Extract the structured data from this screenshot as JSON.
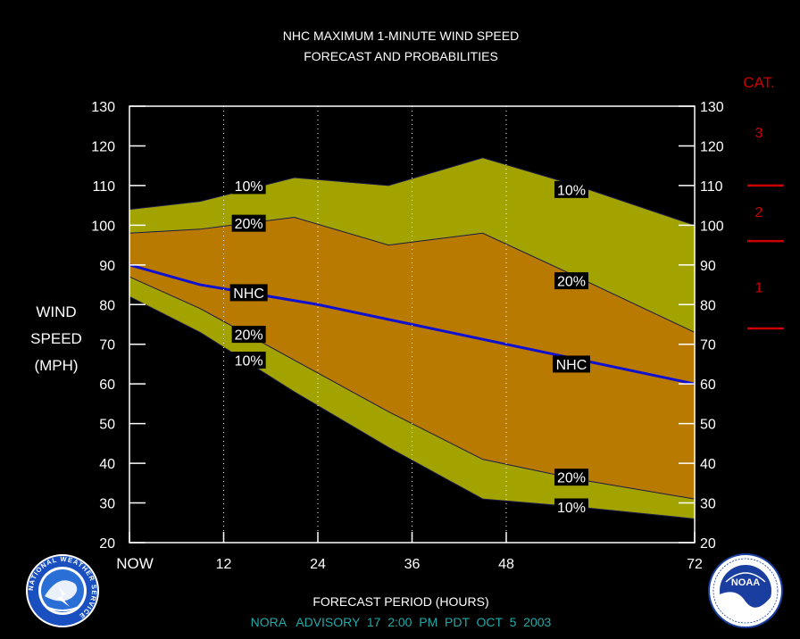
{
  "header": {
    "title_line1": "NHC MAXIMUM 1-MINUTE WIND SPEED",
    "title_line2": "FORECAST AND PROBABILITIES"
  },
  "ylabel": [
    "WIND",
    "SPEED",
    "(MPH)"
  ],
  "xlabel": "FORECAST PERIOD (HOURS)",
  "advisory": "NORA   ADVISORY  17  2:00  PM  PDT  OCT  5  2003",
  "category": {
    "title": "CAT.",
    "labels": [
      {
        "text": "3",
        "mph": 123.5
      },
      {
        "text": "2",
        "mph": 103.5
      },
      {
        "text": "1",
        "mph": 84.5
      }
    ],
    "thresholds_mph": [
      110,
      96,
      74
    ]
  },
  "colors": {
    "background": "#000000",
    "outer_band": "#a3a300",
    "inner_band": "#b87a00",
    "nhc_line": "#1010d0",
    "category": "#cc0000",
    "advisory_text": "#22aaaa",
    "label_box": "#000000"
  },
  "logos": {
    "nws_text": "NATIONAL WEATHER SERVICE",
    "noaa_text": "NOAA"
  },
  "chart_data": {
    "type": "area",
    "x": [
      0,
      12,
      24,
      36,
      48,
      72
    ],
    "x_ticks": [
      {
        "value": 0,
        "label": "NOW"
      },
      {
        "value": 12,
        "label": "12"
      },
      {
        "value": 24,
        "label": "24"
      },
      {
        "value": 36,
        "label": "36"
      },
      {
        "value": 48,
        "label": "48"
      },
      {
        "value": 72,
        "label": "72"
      }
    ],
    "xlim": [
      0,
      72
    ],
    "ylim": [
      20,
      130
    ],
    "y_ticks": [
      20,
      30,
      40,
      50,
      60,
      70,
      80,
      90,
      100,
      110,
      120,
      130
    ],
    "series": [
      {
        "name": "10%",
        "role": "upper_10",
        "points": [
          [
            0,
            104
          ],
          [
            9,
            106
          ],
          [
            21,
            112
          ],
          [
            33,
            110
          ],
          [
            45,
            117
          ],
          [
            57,
            110
          ],
          [
            72,
            100
          ]
        ]
      },
      {
        "name": "20%",
        "role": "upper_20",
        "points": [
          [
            0,
            98
          ],
          [
            9,
            99
          ],
          [
            21,
            102
          ],
          [
            33,
            95
          ],
          [
            45,
            98
          ],
          [
            57,
            87
          ],
          [
            72,
            73
          ]
        ]
      },
      {
        "name": "NHC",
        "role": "nhc",
        "points": [
          [
            0,
            90
          ],
          [
            9,
            85
          ],
          [
            24,
            80
          ],
          [
            36,
            75
          ],
          [
            48,
            70
          ],
          [
            72,
            60
          ]
        ]
      },
      {
        "name": "20%",
        "role": "lower_20",
        "points": [
          [
            0,
            87
          ],
          [
            9,
            79
          ],
          [
            21,
            66
          ],
          [
            33,
            53
          ],
          [
            45,
            41
          ],
          [
            57,
            36
          ],
          [
            72,
            31
          ]
        ]
      },
      {
        "name": "10%",
        "role": "lower_10",
        "points": [
          [
            0,
            82
          ],
          [
            9,
            73
          ],
          [
            21,
            58
          ],
          [
            33,
            44
          ],
          [
            45,
            31
          ],
          [
            57,
            29
          ],
          [
            72,
            26
          ]
        ]
      }
    ],
    "line_labels": [
      {
        "text": "10%",
        "x": 15.2,
        "y": 110
      },
      {
        "text": "20%",
        "x": 15.2,
        "y": 100.5
      },
      {
        "text": "NHC",
        "x": 15.2,
        "y": 83
      },
      {
        "text": "20%",
        "x": 15.2,
        "y": 72.5
      },
      {
        "text": "10%",
        "x": 15.2,
        "y": 66
      },
      {
        "text": "10%",
        "x": 56.3,
        "y": 109
      },
      {
        "text": "20%",
        "x": 56.3,
        "y": 86
      },
      {
        "text": "NHC",
        "x": 56.3,
        "y": 65
      },
      {
        "text": "20%",
        "x": 56.3,
        "y": 36.5
      },
      {
        "text": "10%",
        "x": 56.3,
        "y": 29
      }
    ]
  }
}
